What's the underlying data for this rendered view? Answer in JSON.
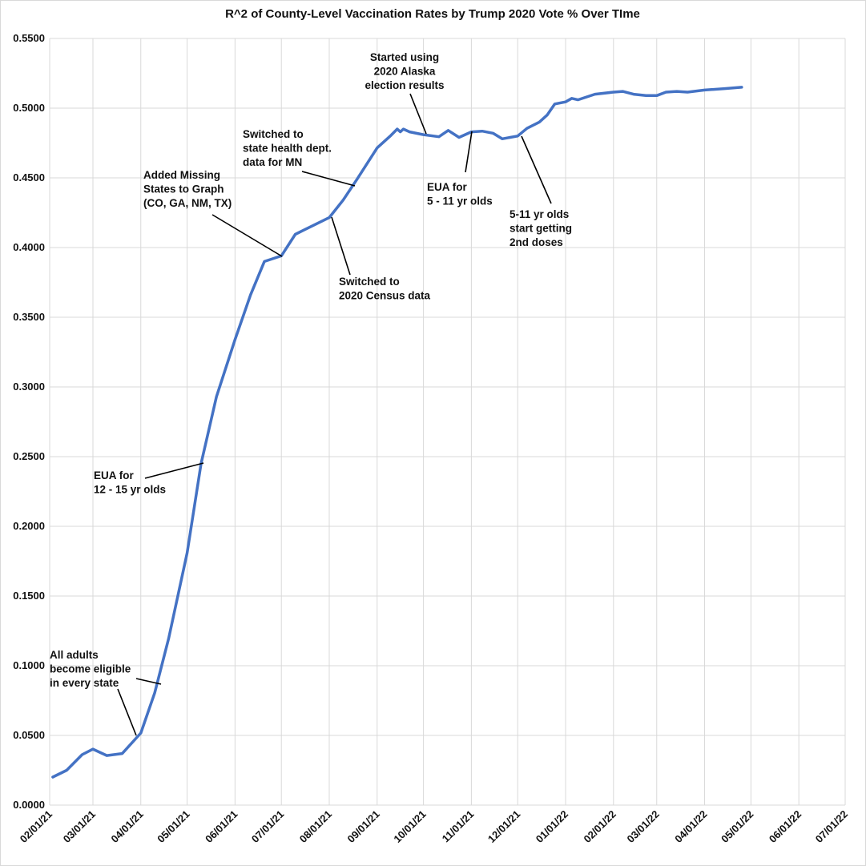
{
  "chart_data": {
    "type": "line",
    "title": "R^2 of County-Level Vaccination Rates by Trump 2020 Vote % Over TIme",
    "xlabel": "",
    "ylabel": "",
    "xlim": [
      "2021-02-01",
      "2022-07-01"
    ],
    "ylim": [
      0,
      0.55
    ],
    "grid": true,
    "line_color": "#4472C4",
    "y_ticks": [
      "0.0000",
      "0.0500",
      "0.1000",
      "0.1500",
      "0.2000",
      "0.2500",
      "0.3000",
      "0.3500",
      "0.4000",
      "0.4500",
      "0.5000",
      "0.5500"
    ],
    "x_ticks": [
      "02/01/21",
      "03/01/21",
      "04/01/21",
      "05/01/21",
      "06/01/21",
      "07/01/21",
      "08/01/21",
      "09/01/21",
      "10/01/21",
      "11/01/21",
      "12/01/21",
      "01/01/22",
      "02/01/22",
      "03/01/22",
      "04/01/22",
      "05/01/22",
      "06/01/22",
      "07/01/22"
    ],
    "series": [
      {
        "points": [
          [
            "2021-02-03",
            0.0201
          ],
          [
            "2021-02-12",
            0.025
          ],
          [
            "2021-02-22",
            0.0362
          ],
          [
            "2021-03-01",
            0.0402
          ],
          [
            "2021-03-10",
            0.0356
          ],
          [
            "2021-03-20",
            0.037
          ],
          [
            "2021-04-01",
            0.0517
          ],
          [
            "2021-04-10",
            0.0805
          ],
          [
            "2021-04-19",
            0.1195
          ],
          [
            "2021-05-01",
            0.181
          ],
          [
            "2021-05-10",
            0.245
          ],
          [
            "2021-05-20",
            0.293
          ],
          [
            "2021-06-01",
            0.334
          ],
          [
            "2021-06-11",
            0.366
          ],
          [
            "2021-06-20",
            0.39
          ],
          [
            "2021-07-01",
            0.394
          ],
          [
            "2021-07-10",
            0.4095
          ],
          [
            "2021-07-20",
            0.415
          ],
          [
            "2021-08-01",
            0.4215
          ],
          [
            "2021-08-10",
            0.434
          ],
          [
            "2021-08-19",
            0.449
          ],
          [
            "2021-09-01",
            0.4715
          ],
          [
            "2021-09-10",
            0.4805
          ],
          [
            "2021-09-14",
            0.485
          ],
          [
            "2021-09-16",
            0.483
          ],
          [
            "2021-09-18",
            0.485
          ],
          [
            "2021-09-22",
            0.483
          ],
          [
            "2021-10-01",
            0.481
          ],
          [
            "2021-10-11",
            0.4795
          ],
          [
            "2021-10-17",
            0.484
          ],
          [
            "2021-10-24",
            0.479
          ],
          [
            "2021-11-01",
            0.483
          ],
          [
            "2021-11-08",
            0.4835
          ],
          [
            "2021-11-15",
            0.482
          ],
          [
            "2021-11-21",
            0.478
          ],
          [
            "2021-12-01",
            0.48
          ],
          [
            "2021-12-07",
            0.4855
          ],
          [
            "2021-12-15",
            0.49
          ],
          [
            "2021-12-20",
            0.495
          ],
          [
            "2021-12-25",
            0.503
          ],
          [
            "2022-01-01",
            0.5045
          ],
          [
            "2022-01-05",
            0.507
          ],
          [
            "2022-01-09",
            0.506
          ],
          [
            "2022-01-20",
            0.51
          ],
          [
            "2022-02-01",
            0.5115
          ],
          [
            "2022-02-07",
            0.512
          ],
          [
            "2022-02-14",
            0.51
          ],
          [
            "2022-02-22",
            0.509
          ],
          [
            "2022-03-01",
            0.509
          ],
          [
            "2022-03-07",
            0.5115
          ],
          [
            "2022-03-14",
            0.512
          ],
          [
            "2022-03-21",
            0.5115
          ],
          [
            "2022-04-01",
            0.513
          ],
          [
            "2022-04-14",
            0.514
          ],
          [
            "2022-04-25",
            0.515
          ]
        ]
      }
    ],
    "annotations": [
      {
        "lines": [
          "All adults",
          "become eligible",
          "in every state"
        ]
      },
      {
        "lines": [
          "EUA for",
          "12 - 15 yr olds"
        ]
      },
      {
        "lines": [
          "Added Missing",
          "States to Graph",
          "(CO, GA, NM, TX)"
        ]
      },
      {
        "lines": [
          "Switched to",
          "2020 Census data"
        ]
      },
      {
        "lines": [
          "Switched to",
          "state health dept.",
          "data for MN"
        ]
      },
      {
        "lines": [
          "Started using",
          "2020 Alaska",
          "election results"
        ]
      },
      {
        "lines": [
          "EUA for",
          "5 - 11 yr olds"
        ]
      },
      {
        "lines": [
          "5-11 yr olds",
          "start getting",
          "2nd doses"
        ]
      }
    ]
  }
}
